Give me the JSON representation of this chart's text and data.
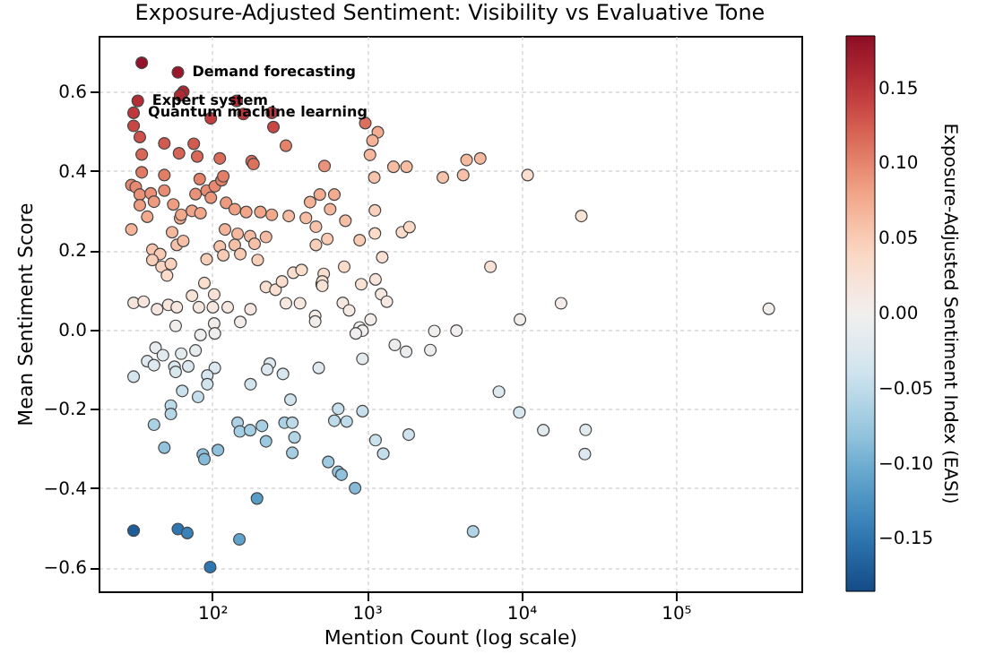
{
  "chart_data": {
    "type": "scatter",
    "title": "Exposure-Adjusted Sentiment: Visibility vs Evaluative Tone",
    "xlabel": "Mention Count (log scale)",
    "ylabel": "Mean Sentiment Score",
    "clabel": "Exposure-Adjusted Sentiment Index (EASI)",
    "log": "x",
    "grid": true,
    "marker": "circle",
    "xlim": [
      18.4,
      650000
    ],
    "ylim": [
      -0.66,
      0.74
    ],
    "xticks": [
      {
        "value": 100,
        "label": "10²"
      },
      {
        "value": 1000,
        "label": "10³"
      },
      {
        "value": 10000,
        "label": "10⁴"
      },
      {
        "value": 100000,
        "label": "10⁵"
      }
    ],
    "yticks": [
      {
        "value": -0.6,
        "label": "−0.6"
      },
      {
        "value": -0.4,
        "label": "−0.4"
      },
      {
        "value": -0.2,
        "label": "−0.2"
      },
      {
        "value": 0,
        "label": "0.0"
      },
      {
        "value": 0.2,
        "label": "0.2"
      },
      {
        "value": 0.4,
        "label": "0.4"
      },
      {
        "value": 0.6,
        "label": "0.6"
      }
    ],
    "clim": [
      -0.185,
      0.185
    ],
    "cticks": [
      {
        "value": -0.15,
        "label": "−0.15"
      },
      {
        "value": -0.1,
        "label": "−0.10"
      },
      {
        "value": -0.05,
        "label": "−0.05"
      },
      {
        "value": 0,
        "label": "0.00"
      },
      {
        "value": 0.05,
        "label": "0.05"
      },
      {
        "value": 0.1,
        "label": "0.10"
      },
      {
        "value": 0.15,
        "label": "0.15"
      }
    ],
    "annotations": [
      {
        "text": "Demand forecasting",
        "x": 60,
        "y": 0.648
      },
      {
        "text": "Expert system",
        "x": 33,
        "y": 0.576
      },
      {
        "text": "Quantum machine learning",
        "x": 31,
        "y": 0.546
      }
    ],
    "x": [
      35,
      60,
      65,
      62,
      33,
      31,
      31,
      34,
      35,
      35,
      30,
      32,
      34,
      34,
      30,
      40,
      42,
      38,
      49,
      49,
      49,
      61,
      76,
      80,
      83,
      78,
      56,
      62,
      63,
      74,
      84,
      98,
      112,
      92,
      104,
      115,
      118,
      98,
      144,
      159,
      180,
      185,
      243,
      249,
      300,
      123,
      140,
      166,
      205,
      243,
      313,
      404,
      430,
      497,
      55,
      121,
      146,
      176,
      223,
      979,
      1180,
      1090,
      1050,
      533,
      1490,
      1810,
      1120,
      3110,
      4210,
      4430,
      5430,
      11000,
      617,
      580,
      1130,
      728,
      469,
      556,
      900,
      1130,
      1690,
      1890,
      24500,
      41,
      46,
      41,
      47,
      51,
      54,
      59,
      65,
      92,
      112,
      118,
      140,
      152,
      188,
      197,
      31,
      36,
      44,
      52,
      59,
      74,
      89,
      103,
      82,
      101,
      126,
      177,
      223,
      257,
      283,
      335,
      379,
      300,
      370,
      464,
      464,
      511,
      58,
      103,
      84,
      104,
      152,
      43,
      48,
      38,
      42,
      63,
      78,
      57,
      58,
      70,
      104,
      93,
      93,
      31,
      64,
      81,
      177,
      236,
      227,
      287,
      489,
      321,
      54,
      54,
      42,
      146,
      151,
      176,
      210,
      294,
      330,
      341,
      223,
      49,
      87,
      89,
      109,
      330,
      564,
      469,
      1260,
      715,
      527,
      516,
      516,
      1140,
      922,
      1240,
      1350,
      700,
      770,
      6320,
      18100,
      9810,
      1060,
      900,
      939,
      850,
      2740,
      3810,
      1520,
      1800,
      2580,
      939,
      7170,
      9730,
      13900,
      26100,
      25800,
      654,
      617,
      742,
      939,
      1140,
      1280,
      1870,
      654,
      687,
      841,
      195,
      31,
      60,
      69,
      150,
      97,
      4880,
      400000
    ],
    "values": [
      0.672,
      0.648,
      0.599,
      0.59,
      0.576,
      0.546,
      0.513,
      0.485,
      0.441,
      0.396,
      0.364,
      0.359,
      0.34,
      0.313,
      0.252,
      0.343,
      0.322,
      0.284,
      0.469,
      0.389,
      0.35,
      0.444,
      0.468,
      0.436,
      0.379,
      0.341,
      0.315,
      0.28,
      0.289,
      0.299,
      0.293,
      0.532,
      0.431,
      0.35,
      0.361,
      0.376,
      0.386,
      0.332,
      0.576,
      0.543,
      0.424,
      0.417,
      0.546,
      0.51,
      0.463,
      0.319,
      0.303,
      0.296,
      0.296,
      0.289,
      0.286,
      0.281,
      0.321,
      0.34,
      0.245,
      0.252,
      0.241,
      0.235,
      0.233,
      0.52,
      0.497,
      0.476,
      0.44,
      0.412,
      0.41,
      0.41,
      0.383,
      0.383,
      0.389,
      0.427,
      0.431,
      0.389,
      0.34,
      0.303,
      0.3,
      0.274,
      0.259,
      0.228,
      0.225,
      0.242,
      0.245,
      0.258,
      0.286,
      0.201,
      0.19,
      0.175,
      0.158,
      0.136,
      0.165,
      0.213,
      0.223,
      0.177,
      0.209,
      0.187,
      0.213,
      0.19,
      0.216,
      0.175,
      0.067,
      0.07,
      0.051,
      0.062,
      0.056,
      0.085,
      0.117,
      0.088,
      0.056,
      0.056,
      0.056,
      0.051,
      0.107,
      0.1,
      0.121,
      0.143,
      0.15,
      0.066,
      0.066,
      0.034,
      0.02,
      0.114,
      0.009,
      0.015,
      -0.014,
      -0.01,
      0.019,
      -0.046,
      -0.065,
      -0.08,
      -0.09,
      -0.061,
      -0.053,
      -0.094,
      -0.107,
      -0.093,
      -0.097,
      -0.116,
      -0.138,
      -0.119,
      -0.155,
      -0.17,
      -0.138,
      -0.086,
      -0.101,
      -0.112,
      -0.097,
      -0.177,
      -0.192,
      -0.213,
      -0.24,
      -0.235,
      -0.257,
      -0.254,
      -0.243,
      -0.235,
      -0.235,
      -0.272,
      -0.282,
      -0.298,
      -0.315,
      -0.327,
      -0.304,
      -0.311,
      -0.334,
      0.213,
      0.182,
      0.158,
      0.14,
      0.121,
      0.11,
      0.126,
      0.114,
      0.089,
      0.07,
      0.067,
      0.048,
      0.158,
      0.066,
      0.025,
      0.025,
      0.005,
      -0.003,
      -0.01,
      -0.004,
      -0.003,
      -0.039,
      -0.056,
      -0.052,
      -0.074,
      -0.157,
      -0.209,
      -0.254,
      -0.253,
      -0.314,
      -0.2,
      -0.23,
      -0.232,
      -0.206,
      -0.279,
      -0.313,
      -0.265,
      -0.359,
      -0.366,
      -0.4,
      -0.426,
      -0.507,
      -0.503,
      -0.513,
      -0.529,
      -0.599,
      -0.509,
      0.052
    ],
    "cvalues": [
      0.18,
      0.175,
      0.162,
      0.159,
      0.156,
      0.147,
      0.139,
      0.131,
      0.119,
      0.107,
      0.098,
      0.097,
      0.092,
      0.085,
      0.068,
      0.093,
      0.087,
      0.077,
      0.127,
      0.105,
      0.095,
      0.12,
      0.126,
      0.118,
      0.102,
      0.092,
      0.085,
      0.076,
      0.078,
      0.081,
      0.079,
      0.144,
      0.116,
      0.095,
      0.097,
      0.102,
      0.104,
      0.09,
      0.156,
      0.147,
      0.114,
      0.113,
      0.147,
      0.138,
      0.102,
      0.086,
      0.082,
      0.08,
      0.08,
      0.078,
      0.063,
      0.062,
      0.071,
      0.075,
      0.066,
      0.068,
      0.065,
      0.063,
      0.063,
      0.114,
      0.075,
      0.071,
      0.066,
      0.091,
      0.062,
      0.062,
      0.057,
      0.057,
      0.058,
      0.064,
      0.065,
      0.031,
      0.075,
      0.067,
      0.045,
      0.06,
      0.057,
      0.05,
      0.05,
      0.036,
      0.037,
      0.039,
      0.023,
      0.054,
      0.051,
      0.047,
      0.043,
      0.037,
      0.045,
      0.058,
      0.06,
      0.048,
      0.056,
      0.05,
      0.058,
      0.051,
      0.058,
      0.047,
      0.018,
      0.019,
      0.014,
      0.017,
      0.015,
      0.023,
      0.032,
      0.024,
      0.015,
      0.015,
      0.015,
      0.014,
      0.029,
      0.027,
      0.033,
      0.031,
      0.033,
      0.015,
      0.015,
      0.007,
      0.004,
      0.025,
      0.002,
      0.004,
      -0.004,
      -0.003,
      0.005,
      -0.012,
      -0.018,
      -0.022,
      -0.024,
      -0.016,
      -0.014,
      -0.025,
      -0.029,
      -0.025,
      -0.026,
      -0.031,
      -0.037,
      -0.032,
      -0.042,
      -0.046,
      -0.037,
      -0.023,
      -0.027,
      -0.03,
      -0.021,
      -0.039,
      -0.052,
      -0.058,
      -0.065,
      -0.063,
      -0.069,
      -0.069,
      -0.066,
      -0.063,
      -0.052,
      -0.06,
      -0.076,
      -0.08,
      -0.085,
      -0.088,
      -0.082,
      -0.068,
      -0.073,
      0.047,
      0.027,
      0.035,
      0.031,
      0.027,
      0.024,
      0.019,
      0.025,
      0.013,
      0.011,
      0.015,
      0.011,
      0.024,
      0.005,
      0.004,
      0.004,
      0.001,
      0,
      -0.002,
      -0.001,
      0,
      -0.006,
      -0.008,
      -0.008,
      -0.016,
      -0.024,
      -0.031,
      -0.02,
      -0.02,
      -0.025,
      -0.044,
      -0.051,
      -0.051,
      -0.045,
      -0.042,
      -0.047,
      -0.04,
      -0.079,
      -0.081,
      -0.088,
      -0.115,
      -0.17,
      -0.15,
      -0.14,
      -0.11,
      -0.15,
      -0.06,
      0.002
    ]
  }
}
